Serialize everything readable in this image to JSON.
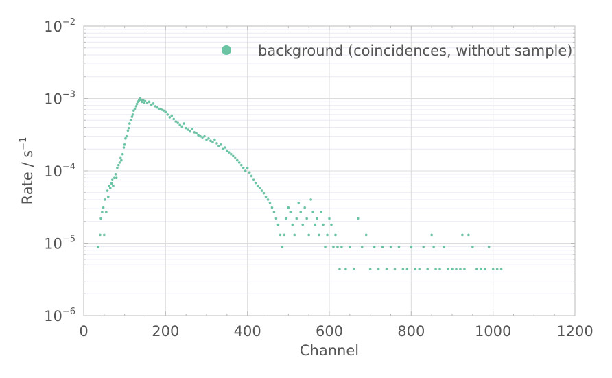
{
  "chart_data": {
    "type": "scatter",
    "xlabel": "Channel",
    "ylabel": "Rate / s",
    "ylabel_superscript": "−1",
    "xlim": [
      0,
      1200
    ],
    "ylim": [
      1e-06,
      0.01
    ],
    "yscale": "log",
    "grid": true,
    "legend_placement": "top-right",
    "x_ticks": [
      0,
      200,
      400,
      600,
      800,
      1000,
      1200
    ],
    "x_tick_labels": [
      "0",
      "200",
      "400",
      "600",
      "800",
      "1000",
      "1200"
    ],
    "y_ticks": [
      1e-06,
      1e-05,
      0.0001,
      0.001,
      0.01
    ],
    "y_tick_labels": [
      {
        "base": "10",
        "exp": "−6"
      },
      {
        "base": "10",
        "exp": "−5"
      },
      {
        "base": "10",
        "exp": "−4"
      },
      {
        "base": "10",
        "exp": "−3"
      },
      {
        "base": "10",
        "exp": "−2"
      }
    ],
    "colors": {
      "series": "#6cc4a4",
      "grid": "#dcdcdc",
      "grid_minor": "#eaeaf6",
      "axis": "#bbbbbb",
      "text": "#555555"
    },
    "series": [
      {
        "name": "background (coincidences, without sample)",
        "points": [
          [
            35,
            8.9e-06
          ],
          [
            40,
            1.3e-05
          ],
          [
            42,
            2.2e-05
          ],
          [
            45,
            2.7e-05
          ],
          [
            48,
            3.1e-05
          ],
          [
            50,
            1.3e-05
          ],
          [
            52,
            4e-05
          ],
          [
            55,
            2.7e-05
          ],
          [
            58,
            5.3e-05
          ],
          [
            60,
            4.4e-05
          ],
          [
            62,
            6.2e-05
          ],
          [
            65,
            5.8e-05
          ],
          [
            68,
            6.7e-05
          ],
          [
            70,
            7.5e-05
          ],
          [
            72,
            6.2e-05
          ],
          [
            75,
            8e-05
          ],
          [
            78,
            9e-05
          ],
          [
            80,
            8e-05
          ],
          [
            82,
            0.00011
          ],
          [
            85,
            0.00012
          ],
          [
            88,
            0.00013
          ],
          [
            90,
            0.00015
          ],
          [
            92,
            0.00014
          ],
          [
            95,
            0.00017
          ],
          [
            98,
            0.00021
          ],
          [
            100,
            0.00023
          ],
          [
            102,
            0.00028
          ],
          [
            105,
            0.0003
          ],
          [
            108,
            0.00036
          ],
          [
            110,
            0.00039
          ],
          [
            112,
            0.00045
          ],
          [
            115,
            0.0005
          ],
          [
            118,
            0.00056
          ],
          [
            120,
            0.0006
          ],
          [
            122,
            0.00068
          ],
          [
            125,
            0.00072
          ],
          [
            128,
            0.00078
          ],
          [
            130,
            0.00084
          ],
          [
            132,
            0.0009
          ],
          [
            135,
            0.00094
          ],
          [
            138,
            0.001
          ],
          [
            140,
            0.00096
          ],
          [
            142,
            0.0009
          ],
          [
            145,
            0.00095
          ],
          [
            148,
            0.00088
          ],
          [
            150,
            0.00092
          ],
          [
            155,
            0.00086
          ],
          [
            160,
            0.0009
          ],
          [
            165,
            0.00082
          ],
          [
            170,
            0.00085
          ],
          [
            175,
            0.00078
          ],
          [
            180,
            0.00075
          ],
          [
            185,
            0.00072
          ],
          [
            190,
            0.0007
          ],
          [
            195,
            0.00068
          ],
          [
            200,
            0.00065
          ],
          [
            205,
            0.0006
          ],
          [
            210,
            0.00055
          ],
          [
            215,
            0.00058
          ],
          [
            220,
            0.00052
          ],
          [
            225,
            0.00048
          ],
          [
            230,
            0.00046
          ],
          [
            235,
            0.00043
          ],
          [
            240,
            0.00041
          ],
          [
            245,
            0.00045
          ],
          [
            250,
            0.00039
          ],
          [
            255,
            0.00037
          ],
          [
            260,
            0.00035
          ],
          [
            265,
            0.00038
          ],
          [
            270,
            0.00034
          ],
          [
            275,
            0.00033
          ],
          [
            280,
            0.00031
          ],
          [
            285,
            0.0003
          ],
          [
            290,
            0.00029
          ],
          [
            295,
            0.0003
          ],
          [
            300,
            0.00027
          ],
          [
            305,
            0.00028
          ],
          [
            310,
            0.00026
          ],
          [
            315,
            0.00025
          ],
          [
            320,
            0.00027
          ],
          [
            325,
            0.00024
          ],
          [
            330,
            0.00022
          ],
          [
            335,
            0.00023
          ],
          [
            340,
            0.0002
          ],
          [
            345,
            0.00021
          ],
          [
            350,
            0.00019
          ],
          [
            355,
            0.00018
          ],
          [
            360,
            0.00017
          ],
          [
            365,
            0.00016
          ],
          [
            370,
            0.00015
          ],
          [
            375,
            0.00014
          ],
          [
            380,
            0.00013
          ],
          [
            385,
            0.00012
          ],
          [
            390,
            0.00011
          ],
          [
            395,
            0.0001
          ],
          [
            400,
            0.00011
          ],
          [
            405,
            9.5e-05
          ],
          [
            410,
            8.5e-05
          ],
          [
            415,
            7.5e-05
          ],
          [
            420,
            6.8e-05
          ],
          [
            425,
            6.2e-05
          ],
          [
            430,
            5.8e-05
          ],
          [
            435,
            5.3e-05
          ],
          [
            440,
            4.9e-05
          ],
          [
            445,
            4.4e-05
          ],
          [
            450,
            4e-05
          ],
          [
            455,
            3.6e-05
          ],
          [
            460,
            3.1e-05
          ],
          [
            465,
            2.7e-05
          ],
          [
            470,
            2.2e-05
          ],
          [
            475,
            1.8e-05
          ],
          [
            480,
            1.3e-05
          ],
          [
            485,
            8.9e-06
          ],
          [
            490,
            1.3e-05
          ],
          [
            495,
            2.2e-05
          ],
          [
            500,
            3.1e-05
          ],
          [
            505,
            2.7e-05
          ],
          [
            510,
            1.8e-05
          ],
          [
            515,
            1.3e-05
          ],
          [
            520,
            2.2e-05
          ],
          [
            525,
            3.6e-05
          ],
          [
            530,
            2.7e-05
          ],
          [
            535,
            1.8e-05
          ],
          [
            540,
            3.1e-05
          ],
          [
            545,
            2.2e-05
          ],
          [
            550,
            1.3e-05
          ],
          [
            555,
            4e-05
          ],
          [
            560,
            2.7e-05
          ],
          [
            565,
            1.8e-05
          ],
          [
            570,
            2.2e-05
          ],
          [
            575,
            1.3e-05
          ],
          [
            580,
            2.7e-05
          ],
          [
            585,
            1.8e-05
          ],
          [
            590,
            8.9e-06
          ],
          [
            595,
            1.3e-05
          ],
          [
            600,
            2.2e-05
          ],
          [
            605,
            1.8e-05
          ],
          [
            610,
            8.9e-06
          ],
          [
            615,
            1.3e-05
          ],
          [
            620,
            8.9e-06
          ],
          [
            625,
            4.4e-06
          ],
          [
            630,
            8.9e-06
          ],
          [
            640,
            4.4e-06
          ],
          [
            650,
            8.9e-06
          ],
          [
            660,
            4.4e-06
          ],
          [
            670,
            2.2e-05
          ],
          [
            680,
            8.9e-06
          ],
          [
            690,
            1.3e-05
          ],
          [
            700,
            4.4e-06
          ],
          [
            710,
            8.9e-06
          ],
          [
            720,
            4.4e-06
          ],
          [
            730,
            8.9e-06
          ],
          [
            740,
            4.4e-06
          ],
          [
            750,
            8.9e-06
          ],
          [
            760,
            4.4e-06
          ],
          [
            770,
            8.9e-06
          ],
          [
            780,
            4.4e-06
          ],
          [
            790,
            4.4e-06
          ],
          [
            800,
            8.9e-06
          ],
          [
            810,
            4.4e-06
          ],
          [
            820,
            4.4e-06
          ],
          [
            830,
            8.9e-06
          ],
          [
            840,
            4.4e-06
          ],
          [
            850,
            1.3e-05
          ],
          [
            855,
            8.9e-06
          ],
          [
            860,
            4.4e-06
          ],
          [
            870,
            4.4e-06
          ],
          [
            880,
            8.9e-06
          ],
          [
            890,
            4.4e-06
          ],
          [
            900,
            4.4e-06
          ],
          [
            910,
            4.4e-06
          ],
          [
            920,
            4.4e-06
          ],
          [
            925,
            1.3e-05
          ],
          [
            930,
            4.4e-06
          ],
          [
            940,
            1.3e-05
          ],
          [
            950,
            8.9e-06
          ],
          [
            960,
            4.4e-06
          ],
          [
            970,
            4.4e-06
          ],
          [
            980,
            4.4e-06
          ],
          [
            990,
            8.9e-06
          ],
          [
            1000,
            4.4e-06
          ],
          [
            1010,
            4.4e-06
          ],
          [
            1020,
            4.4e-06
          ]
        ]
      }
    ]
  }
}
